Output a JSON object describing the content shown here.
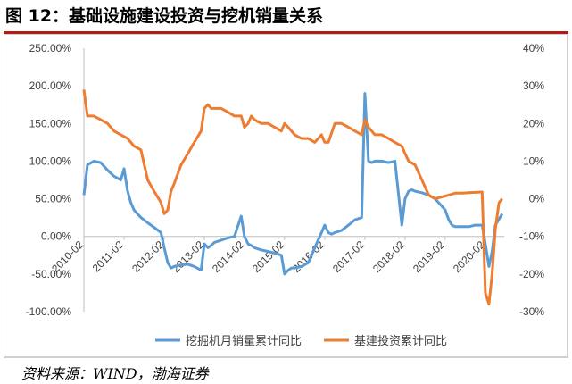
{
  "header": {
    "title": "图 12：基础设施建设投资与挖机销量关系"
  },
  "footer": {
    "source": "资料来源：WIND，渤海证券"
  },
  "colors": {
    "excavator": "#5b9bd5",
    "infrastructure": "#ed7d31",
    "title_rule": "#b31b1b"
  },
  "chart_data": {
    "type": "line",
    "title": "",
    "xlabel": "",
    "y_left": {
      "label": "",
      "lim": [
        -100,
        250
      ],
      "ticks": [
        -100,
        -50,
        0,
        50,
        100,
        150,
        200,
        250
      ],
      "tick_labels": [
        "-100.00%",
        "-50.00%",
        "0.00%",
        "50.00%",
        "100.00%",
        "150.00%",
        "200.00%",
        "250.00%"
      ]
    },
    "y_right": {
      "label": "",
      "lim": [
        -30,
        40
      ],
      "ticks": [
        -30,
        -20,
        -10,
        0,
        10,
        20,
        30,
        40
      ],
      "tick_labels": [
        "-30%",
        "-20%",
        "-10%",
        "0%",
        "10%",
        "20%",
        "30%",
        "40%"
      ]
    },
    "x_ticks": [
      "2010-02",
      "2011-02",
      "2012-02",
      "2013-02",
      "2014-02",
      "2015-02",
      "2016-02",
      "2017-02",
      "2018-02",
      "2019-02",
      "2020-02"
    ],
    "legend": {
      "position": "bottom"
    },
    "series": [
      {
        "name": "挖掘机月销量累计同比",
        "axis": "left",
        "x": [
          2010.08,
          2010.17,
          2010.33,
          2010.5,
          2010.67,
          2010.83,
          2011.0,
          2011.08,
          2011.17,
          2011.25,
          2011.33,
          2011.5,
          2011.67,
          2011.83,
          2012.0,
          2012.08,
          2012.17,
          2012.25,
          2012.33,
          2012.5,
          2012.67,
          2012.83,
          2013.0,
          2013.08,
          2013.17,
          2013.25,
          2013.33,
          2013.5,
          2013.67,
          2013.83,
          2014.0,
          2014.08,
          2014.17,
          2014.25,
          2014.33,
          2014.5,
          2014.67,
          2014.83,
          2015.0,
          2015.08,
          2015.17,
          2015.25,
          2015.33,
          2015.5,
          2015.67,
          2015.83,
          2016.0,
          2016.08,
          2016.17,
          2016.25,
          2016.33,
          2016.5,
          2016.67,
          2016.83,
          2017.0,
          2017.08,
          2017.17,
          2017.25,
          2017.33,
          2017.5,
          2017.67,
          2017.83,
          2018.0,
          2018.08,
          2018.17,
          2018.25,
          2018.33,
          2018.5,
          2018.67,
          2018.83,
          2019.0,
          2019.08,
          2019.17,
          2019.25,
          2019.33,
          2019.5,
          2019.67,
          2019.83,
          2020.0,
          2020.08,
          2020.17,
          2020.25,
          2020.33,
          2020.5
        ],
        "values": [
          55,
          95,
          100,
          98,
          88,
          80,
          75,
          90,
          60,
          45,
          35,
          25,
          18,
          12,
          5,
          -15,
          -35,
          -42,
          -40,
          -38,
          -37,
          -40,
          -45,
          -10,
          -15,
          -12,
          -8,
          -5,
          -2,
          0,
          27,
          0,
          -10,
          -12,
          -15,
          -18,
          -20,
          -22,
          -25,
          -50,
          -45,
          -42,
          -42,
          -40,
          -35,
          -15,
          5,
          15,
          5,
          3,
          5,
          8,
          15,
          22,
          25,
          190,
          100,
          98,
          100,
          100,
          98,
          100,
          15,
          50,
          60,
          62,
          60,
          58,
          55,
          50,
          40,
          35,
          22,
          15,
          13,
          13,
          13,
          15,
          15,
          -10,
          -40,
          -20,
          15,
          30
        ]
      },
      {
        "name": "基建投资累计同比",
        "axis": "right",
        "x": [
          2010.08,
          2010.17,
          2010.33,
          2010.5,
          2010.67,
          2010.83,
          2011.0,
          2011.17,
          2011.33,
          2011.5,
          2011.67,
          2011.83,
          2012.0,
          2012.08,
          2012.17,
          2012.25,
          2012.33,
          2012.5,
          2012.67,
          2012.83,
          2013.0,
          2013.08,
          2013.17,
          2013.25,
          2013.33,
          2013.5,
          2013.67,
          2013.83,
          2014.0,
          2014.08,
          2014.17,
          2014.25,
          2014.33,
          2014.5,
          2014.67,
          2014.83,
          2015.0,
          2015.08,
          2015.17,
          2015.33,
          2015.5,
          2015.67,
          2015.83,
          2016.0,
          2016.08,
          2016.17,
          2016.33,
          2016.5,
          2016.67,
          2016.83,
          2017.0,
          2017.08,
          2017.17,
          2017.33,
          2017.5,
          2017.67,
          2017.83,
          2018.0,
          2018.08,
          2018.17,
          2018.33,
          2018.5,
          2018.67,
          2018.83,
          2019.0,
          2019.17,
          2019.33,
          2019.5,
          2019.67,
          2019.83,
          2020.0,
          2020.08,
          2020.17,
          2020.25,
          2020.33,
          2020.42,
          2020.5
        ],
        "values": [
          29,
          22,
          22,
          21,
          20,
          18,
          17,
          16,
          14,
          13,
          5,
          2,
          -1,
          -4,
          -3,
          2,
          4,
          9,
          12,
          15,
          18,
          24,
          25,
          24,
          24,
          24,
          23,
          22,
          22,
          19,
          20,
          22,
          21,
          20,
          20,
          19,
          18,
          20,
          19,
          17,
          16,
          16,
          15,
          17,
          15,
          15,
          20,
          20,
          19,
          18,
          17,
          21,
          19,
          17,
          17,
          16,
          15,
          14,
          12,
          10,
          9,
          5,
          1,
          0,
          0.5,
          1,
          1.5,
          1.5,
          1.6,
          1.7,
          1.8,
          -25,
          -28,
          -20,
          -8,
          -1,
          0
        ]
      }
    ]
  }
}
